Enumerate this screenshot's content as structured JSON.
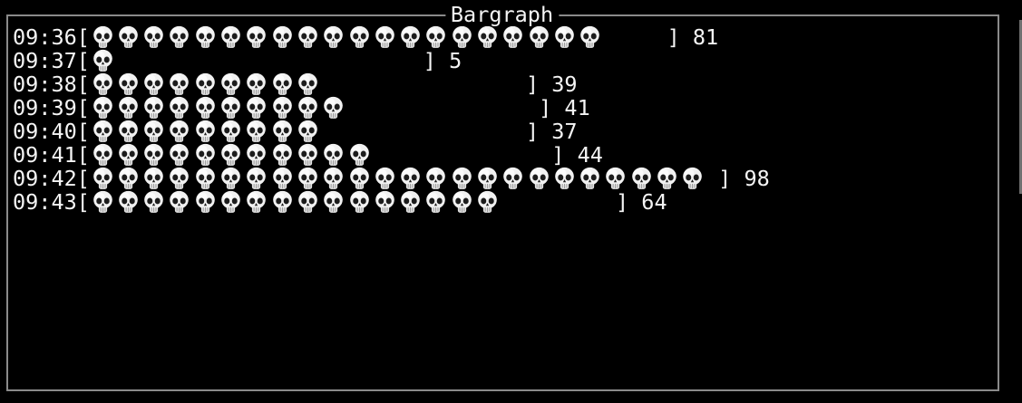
{
  "window": {
    "title": "Bargraph"
  },
  "colors": {
    "background": "#000000",
    "border": "#8a8a8a",
    "text": "#f5f5f5",
    "skull_light": "#f1f1f1",
    "skull_jaw": "#e4e4e4",
    "skull_dark": "#1c1c1c",
    "scrollbar": "#6f6f6f"
  },
  "chart_data": {
    "type": "bar",
    "orientation": "horizontal",
    "title": "Bargraph",
    "glyph": "skull-emoji",
    "bracket_open": "[",
    "bracket_close": "]",
    "categories": [
      "09:36",
      "09:37",
      "09:38",
      "09:39",
      "09:40",
      "09:41",
      "09:42",
      "09:43"
    ],
    "values": [
      81,
      5,
      39,
      41,
      37,
      44,
      98,
      64
    ],
    "glyph_counts": [
      20,
      1,
      9,
      10,
      9,
      11,
      24,
      16
    ],
    "bar_char_budget": 25,
    "xlim": [
      0,
      100
    ],
    "legend": "none",
    "grid": "off"
  }
}
